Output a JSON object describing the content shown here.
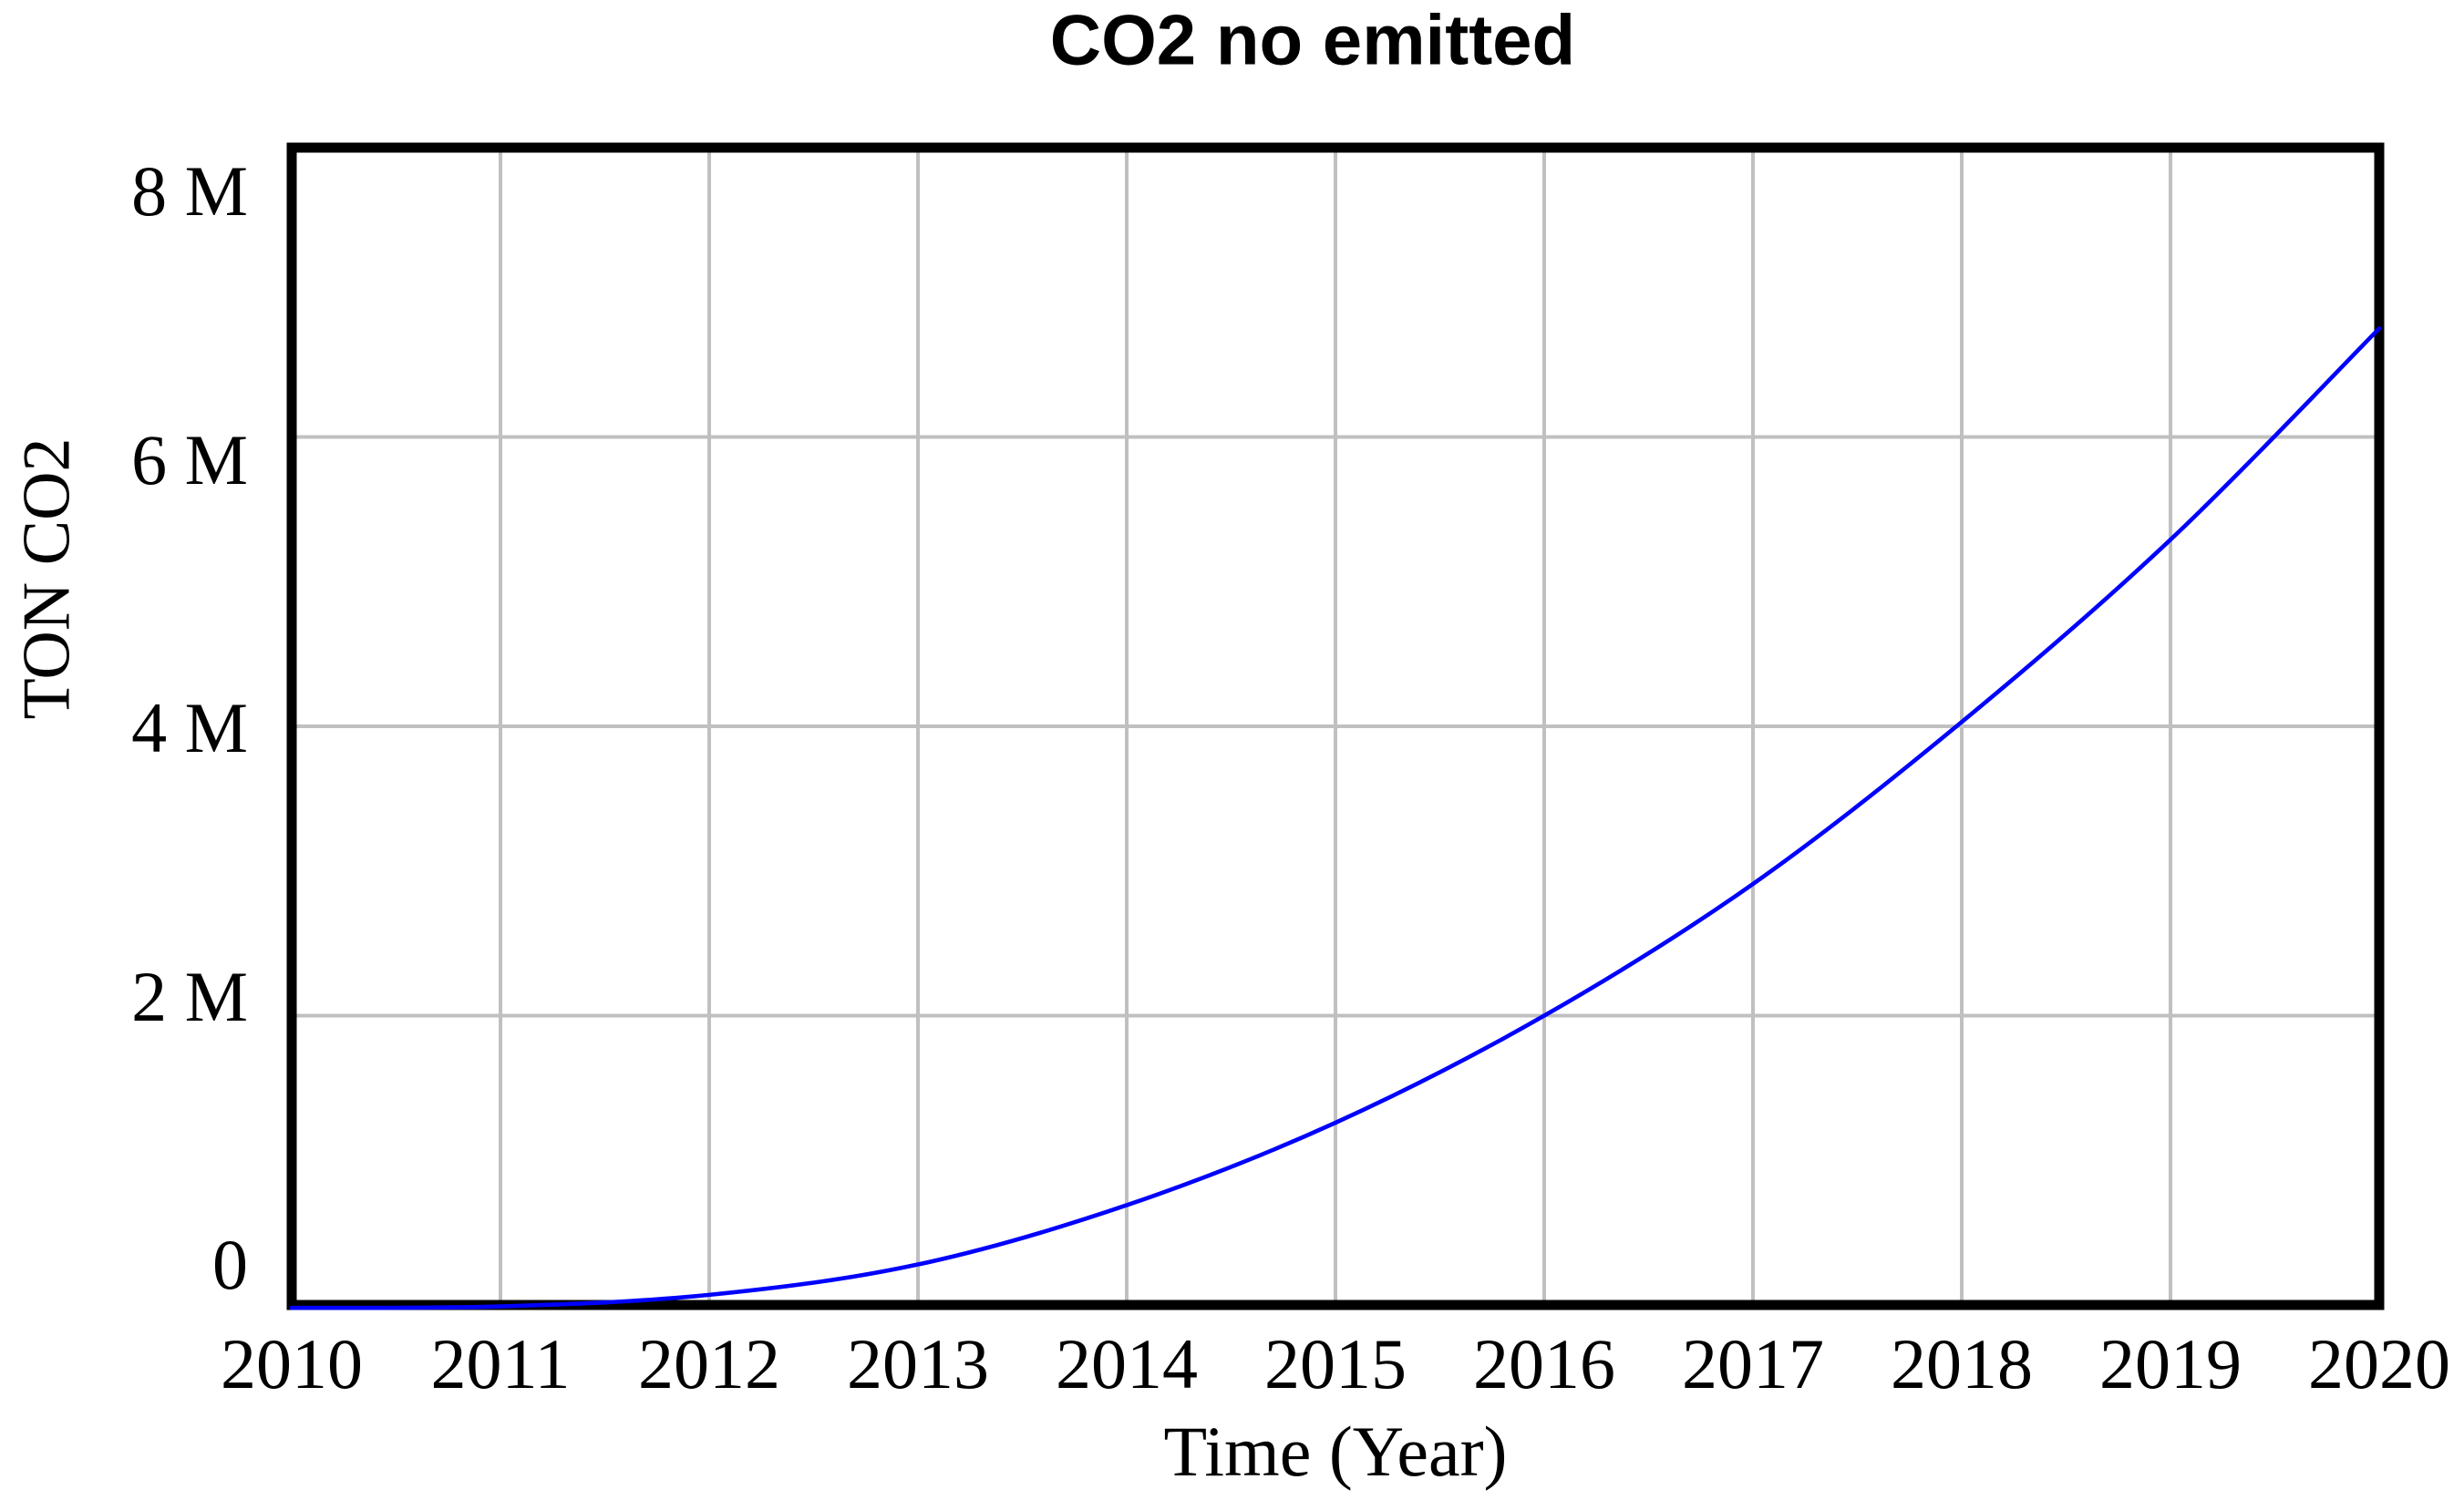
{
  "chart": {
    "title": "CO2 no emitted",
    "x_axis_title": "Time (Year)",
    "y_axis_title": "TON CO2"
  },
  "chart_data": {
    "type": "line",
    "title": "CO2 no emitted",
    "xlabel": "Time (Year)",
    "ylabel": "TON CO2",
    "x": [
      2010,
      2011,
      2012,
      2013,
      2014,
      2015,
      2016,
      2017,
      2018,
      2019,
      2020
    ],
    "series": [
      {
        "name": "CO2 no emitted",
        "values_in_millions": [
          -0.02,
          -0.01,
          0.07,
          0.28,
          0.69,
          1.26,
          2.0,
          2.91,
          4.03,
          5.29,
          6.75
        ],
        "color": "#0000ff"
      }
    ],
    "xlim": [
      2010,
      2020
    ],
    "ylim": [
      0,
      8
    ],
    "y_unit": "M",
    "y_ticks": [
      {
        "value": 8,
        "label": "8 M"
      },
      {
        "value": 6,
        "label": "6 M"
      },
      {
        "value": 4,
        "label": "4 M"
      },
      {
        "value": 2,
        "label": "2 M"
      },
      {
        "value": 0,
        "label": "0"
      }
    ],
    "x_tick_labels": [
      "2010",
      "2011",
      "2012",
      "2013",
      "2014",
      "2015",
      "2016",
      "2017",
      "2018",
      "2019",
      "2020"
    ],
    "grid": true,
    "legend": "none",
    "colors": {
      "line": "#0000ff",
      "gridline": "#c0c0c0",
      "plot_border": "#000000",
      "text": "#000000",
      "background": "#ffffff"
    }
  }
}
